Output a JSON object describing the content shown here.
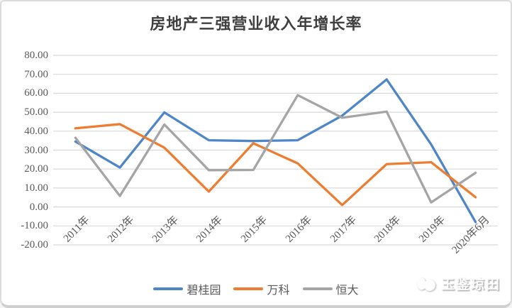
{
  "title": "房地产三强营业收入年增长率",
  "watermark": {
    "text": "玉鉴琼田"
  },
  "colors": {
    "accent_blue": "#4E86C8",
    "accent_orange": "#ED7D31",
    "accent_gray": "#A5A5A5",
    "gridline": "#D9D9D9",
    "axis_text": "#595959",
    "title_text": "#3F3F3F"
  },
  "chart_data": {
    "type": "line",
    "title": "房地产三强营业收入年增长率",
    "categories": [
      "2011年",
      "2012年",
      "2013年",
      "2014年",
      "2015年",
      "2016年",
      "2017年",
      "2018年",
      "2019年",
      "2020年6月"
    ],
    "series": [
      {
        "name": "碧桂园",
        "color": "#4E86C8",
        "values": [
          34.5,
          20.8,
          49.9,
          35.2,
          34.8,
          35.2,
          48.2,
          67.3,
          33.0,
          -8.0
        ]
      },
      {
        "name": "万科",
        "color": "#ED7D31",
        "values": [
          41.5,
          43.7,
          31.3,
          8.1,
          33.6,
          23.0,
          1.0,
          22.6,
          23.6,
          5.1
        ]
      },
      {
        "name": "恒大",
        "color": "#A5A5A5",
        "values": [
          36.5,
          5.8,
          43.5,
          19.4,
          19.5,
          59.0,
          47.1,
          50.3,
          2.4,
          18.0
        ]
      }
    ],
    "xlabel": "",
    "ylabel": "",
    "ylim": [
      -20,
      80
    ],
    "ytick_step": 10,
    "ytick_labels": [
      "80.00",
      "70.00",
      "60.00",
      "50.00",
      "40.00",
      "30.00",
      "20.00",
      "10.00",
      "0.00",
      "-10.00",
      "-20.00"
    ],
    "grid": true,
    "legend_position": "bottom",
    "x_label_rotation_deg": 45
  }
}
